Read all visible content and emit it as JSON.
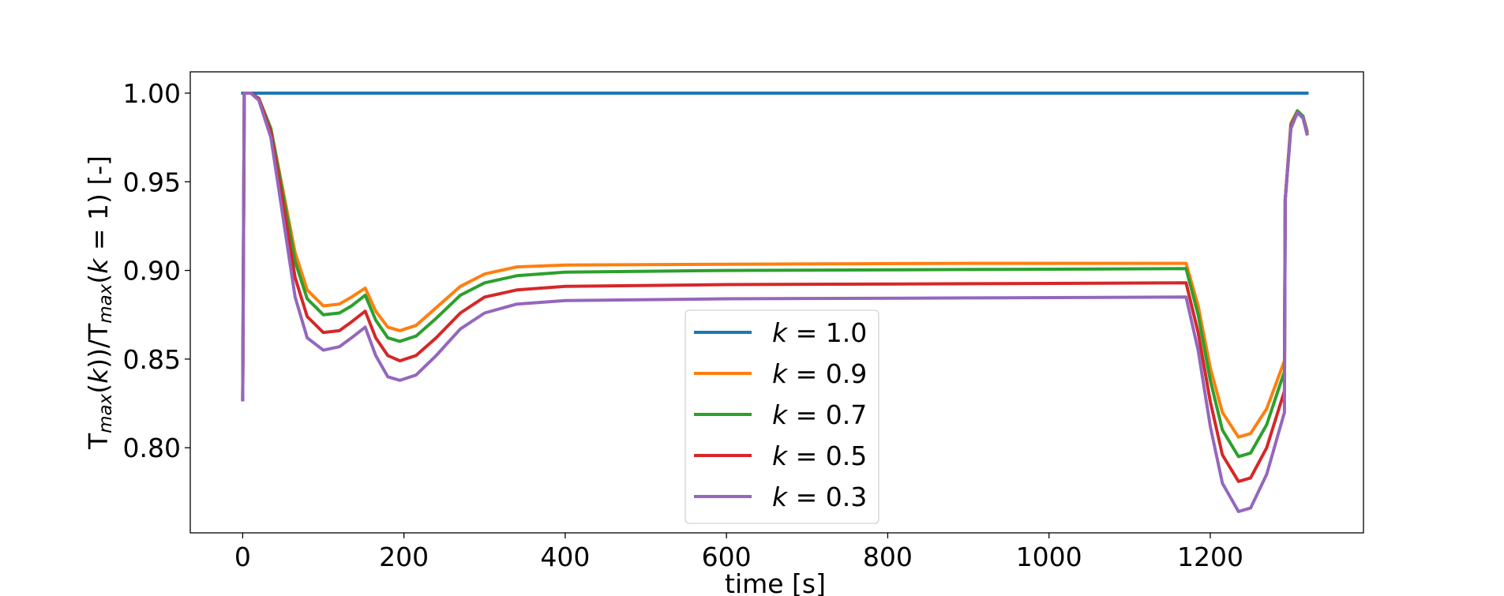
{
  "chart_data": {
    "type": "line",
    "xlabel": "time [s]",
    "ylabel": {
      "parts": [
        {
          "t": "T",
          "s": "n"
        },
        {
          "t": "max",
          "s": "sub"
        },
        {
          "t": "(",
          "s": "n"
        },
        {
          "t": "k",
          "s": "it"
        },
        {
          "t": "))/T",
          "s": "n"
        },
        {
          "t": "max",
          "s": "sub"
        },
        {
          "t": "(",
          "s": "n"
        },
        {
          "t": "k",
          "s": "it"
        },
        {
          "t": " = 1) [-]",
          "s": "n"
        }
      ]
    },
    "xlim": [
      -65,
      1390
    ],
    "ylim": [
      0.752,
      1.012
    ],
    "xticks": [
      0,
      200,
      400,
      600,
      800,
      1000,
      1200
    ],
    "xtick_labels": [
      "0",
      "200",
      "400",
      "600",
      "800",
      "1000",
      "1200"
    ],
    "yticks": [
      0.8,
      0.85,
      0.9,
      0.95,
      1.0
    ],
    "ytick_labels": [
      "0.80",
      "0.85",
      "0.90",
      "0.95",
      "1.00"
    ],
    "legend_position": "lower center",
    "series": [
      {
        "name": "1.0",
        "color": "#1f77b4",
        "points": [
          [
            0,
            1.0
          ],
          [
            1320,
            1.0
          ]
        ]
      },
      {
        "name": "0.9",
        "color": "#ff7f0e",
        "points": [
          [
            0,
            0.827
          ],
          [
            2,
            1.0
          ],
          [
            10,
            1.0
          ],
          [
            20,
            0.997
          ],
          [
            35,
            0.98
          ],
          [
            50,
            0.945
          ],
          [
            65,
            0.91
          ],
          [
            80,
            0.889
          ],
          [
            100,
            0.88
          ],
          [
            120,
            0.881
          ],
          [
            135,
            0.885
          ],
          [
            152,
            0.89
          ],
          [
            165,
            0.877
          ],
          [
            180,
            0.868
          ],
          [
            195,
            0.866
          ],
          [
            215,
            0.869
          ],
          [
            240,
            0.879
          ],
          [
            270,
            0.891
          ],
          [
            300,
            0.898
          ],
          [
            340,
            0.902
          ],
          [
            400,
            0.903
          ],
          [
            600,
            0.9035
          ],
          [
            900,
            0.904
          ],
          [
            1170,
            0.904
          ],
          [
            1185,
            0.88
          ],
          [
            1200,
            0.845
          ],
          [
            1215,
            0.82
          ],
          [
            1235,
            0.806
          ],
          [
            1250,
            0.808
          ],
          [
            1270,
            0.822
          ],
          [
            1292,
            0.849
          ],
          [
            1293,
            0.94
          ],
          [
            1300,
            0.983
          ],
          [
            1308,
            0.99
          ],
          [
            1315,
            0.987
          ],
          [
            1320,
            0.979
          ]
        ]
      },
      {
        "name": "0.7",
        "color": "#2ca02c",
        "points": [
          [
            0,
            0.827
          ],
          [
            2,
            1.0
          ],
          [
            10,
            1.0
          ],
          [
            20,
            0.997
          ],
          [
            35,
            0.98
          ],
          [
            50,
            0.943
          ],
          [
            65,
            0.905
          ],
          [
            80,
            0.884
          ],
          [
            100,
            0.875
          ],
          [
            120,
            0.876
          ],
          [
            135,
            0.88
          ],
          [
            152,
            0.886
          ],
          [
            165,
            0.872
          ],
          [
            180,
            0.862
          ],
          [
            195,
            0.86
          ],
          [
            215,
            0.863
          ],
          [
            240,
            0.873
          ],
          [
            270,
            0.886
          ],
          [
            300,
            0.893
          ],
          [
            340,
            0.897
          ],
          [
            400,
            0.899
          ],
          [
            600,
            0.9
          ],
          [
            900,
            0.9005
          ],
          [
            1170,
            0.901
          ],
          [
            1185,
            0.875
          ],
          [
            1200,
            0.838
          ],
          [
            1215,
            0.81
          ],
          [
            1235,
            0.795
          ],
          [
            1250,
            0.797
          ],
          [
            1270,
            0.813
          ],
          [
            1292,
            0.843
          ],
          [
            1293,
            0.94
          ],
          [
            1300,
            0.982
          ],
          [
            1308,
            0.99
          ],
          [
            1315,
            0.987
          ],
          [
            1320,
            0.978
          ]
        ]
      },
      {
        "name": "0.5",
        "color": "#d62728",
        "points": [
          [
            0,
            0.827
          ],
          [
            2,
            1.0
          ],
          [
            10,
            1.0
          ],
          [
            20,
            0.997
          ],
          [
            35,
            0.978
          ],
          [
            50,
            0.938
          ],
          [
            65,
            0.896
          ],
          [
            80,
            0.874
          ],
          [
            100,
            0.865
          ],
          [
            120,
            0.866
          ],
          [
            135,
            0.871
          ],
          [
            152,
            0.877
          ],
          [
            165,
            0.862
          ],
          [
            180,
            0.852
          ],
          [
            195,
            0.849
          ],
          [
            215,
            0.852
          ],
          [
            240,
            0.862
          ],
          [
            270,
            0.876
          ],
          [
            300,
            0.885
          ],
          [
            340,
            0.889
          ],
          [
            400,
            0.891
          ],
          [
            600,
            0.892
          ],
          [
            900,
            0.8925
          ],
          [
            1170,
            0.893
          ],
          [
            1185,
            0.865
          ],
          [
            1200,
            0.826
          ],
          [
            1215,
            0.796
          ],
          [
            1235,
            0.781
          ],
          [
            1250,
            0.783
          ],
          [
            1270,
            0.8
          ],
          [
            1292,
            0.832
          ],
          [
            1293,
            0.94
          ],
          [
            1300,
            0.981
          ],
          [
            1308,
            0.989
          ],
          [
            1315,
            0.986
          ],
          [
            1320,
            0.977
          ]
        ]
      },
      {
        "name": "0.3",
        "color": "#9467bd",
        "points": [
          [
            0,
            0.827
          ],
          [
            2,
            1.0
          ],
          [
            10,
            1.0
          ],
          [
            20,
            0.996
          ],
          [
            35,
            0.975
          ],
          [
            50,
            0.93
          ],
          [
            65,
            0.885
          ],
          [
            80,
            0.862
          ],
          [
            100,
            0.855
          ],
          [
            120,
            0.857
          ],
          [
            135,
            0.862
          ],
          [
            152,
            0.868
          ],
          [
            165,
            0.852
          ],
          [
            180,
            0.84
          ],
          [
            195,
            0.838
          ],
          [
            215,
            0.841
          ],
          [
            240,
            0.852
          ],
          [
            270,
            0.867
          ],
          [
            300,
            0.876
          ],
          [
            340,
            0.881
          ],
          [
            400,
            0.883
          ],
          [
            600,
            0.884
          ],
          [
            900,
            0.8845
          ],
          [
            1170,
            0.885
          ],
          [
            1185,
            0.855
          ],
          [
            1200,
            0.812
          ],
          [
            1215,
            0.78
          ],
          [
            1235,
            0.764
          ],
          [
            1250,
            0.766
          ],
          [
            1270,
            0.785
          ],
          [
            1292,
            0.82
          ],
          [
            1293,
            0.94
          ],
          [
            1300,
            0.98
          ],
          [
            1308,
            0.989
          ],
          [
            1315,
            0.986
          ],
          [
            1320,
            0.977
          ]
        ]
      }
    ]
  }
}
